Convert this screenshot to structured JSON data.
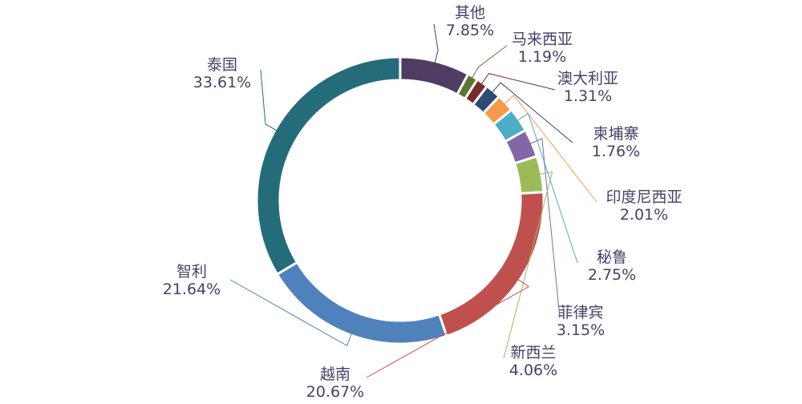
{
  "chart_data": {
    "type": "pie",
    "variant": "donut",
    "start_angle_deg": 0,
    "direction": "clockwise",
    "legend": "none",
    "slices": [
      {
        "label": "其他",
        "value": 7.85,
        "value_text": "7.85%",
        "color": "#4e3c62"
      },
      {
        "label": "马来西亚",
        "value": 1.19,
        "value_text": "1.19%",
        "color": "#5e7532"
      },
      {
        "label": "澳大利亚",
        "value": 1.31,
        "value_text": "1.31%",
        "color": "#7a2b2b"
      },
      {
        "label": "柬埔寨",
        "value": 1.76,
        "value_text": "1.76%",
        "color": "#2d4a78"
      },
      {
        "label": "印度尼西亚",
        "value": 2.01,
        "value_text": "2.01%",
        "color": "#f49a48"
      },
      {
        "label": "秘鲁",
        "value": 2.75,
        "value_text": "2.75%",
        "color": "#4badc6"
      },
      {
        "label": "菲律宾",
        "value": 3.15,
        "value_text": "3.15%",
        "color": "#8266a6"
      },
      {
        "label": "新西兰",
        "value": 4.06,
        "value_text": "4.06%",
        "color": "#9bbb59"
      },
      {
        "label": "越南",
        "value": 20.67,
        "value_text": "20.67%",
        "color": "#c0504d"
      },
      {
        "label": "智利",
        "value": 21.64,
        "value_text": "21.64%",
        "color": "#4f81bd"
      },
      {
        "label": "泰国",
        "value": 33.61,
        "value_text": "33.61%",
        "color": "#256c7a"
      }
    ]
  }
}
